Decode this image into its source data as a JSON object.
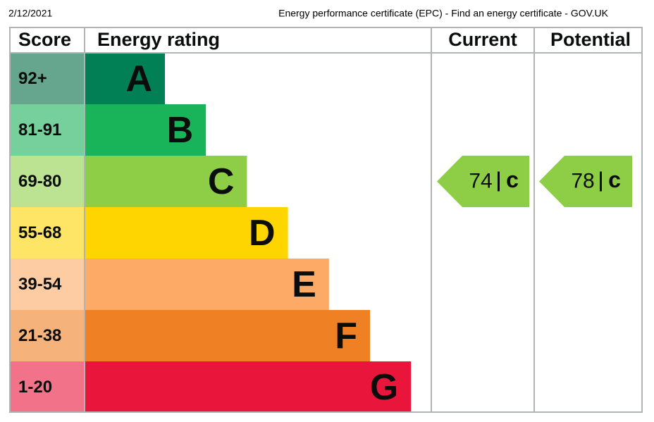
{
  "header": {
    "date": "2/12/2021",
    "title": "Energy performance certificate (EPC) - Find an energy certificate - GOV.UK"
  },
  "table": {
    "columns": [
      "Score",
      "Energy rating",
      "Current",
      "Potential"
    ],
    "bands": [
      {
        "score": "92+",
        "letter": "A",
        "color": "#008054",
        "score_color": "#66a68e"
      },
      {
        "score": "81-91",
        "letter": "B",
        "color": "#19b459",
        "score_color": "#75d09b"
      },
      {
        "score": "69-80",
        "letter": "C",
        "color": "#8dce46",
        "score_color": "#bbe391"
      },
      {
        "score": "55-68",
        "letter": "D",
        "color": "#ffd500",
        "score_color": "#ffe566"
      },
      {
        "score": "39-54",
        "letter": "E",
        "color": "#fcaa65",
        "score_color": "#fdcca3"
      },
      {
        "score": "21-38",
        "letter": "F",
        "color": "#ef8023",
        "score_color": "#f5b37b"
      },
      {
        "score": "1-20",
        "letter": "G",
        "color": "#e9153b",
        "score_color": "#f27389"
      }
    ],
    "current": {
      "value": 74,
      "letter": "c",
      "band": 2
    },
    "potential": {
      "value": 78,
      "letter": "c",
      "band": 2
    }
  }
}
